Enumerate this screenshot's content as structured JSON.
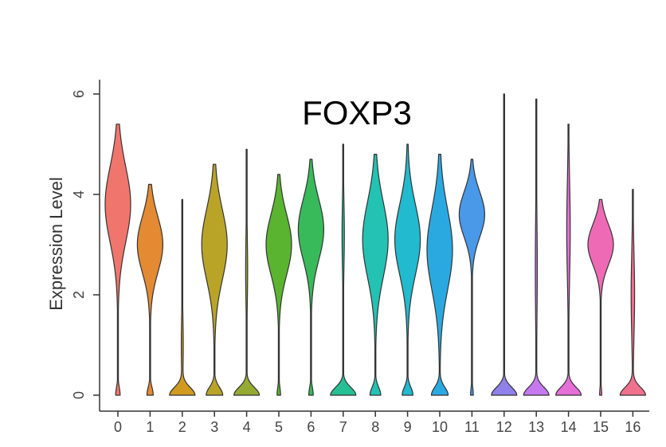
{
  "chart_data": {
    "type": "violin",
    "title": "FOXP3",
    "xlabel": "",
    "ylabel": "Expression Level",
    "ylim": [
      0,
      6.3
    ],
    "yticks": [
      0,
      2,
      4,
      6
    ],
    "ytick_labels": [
      "0",
      "2",
      "4",
      "6"
    ],
    "grid": false,
    "legend": "none",
    "categories": [
      "0",
      "1",
      "2",
      "3",
      "4",
      "5",
      "6",
      "7",
      "8",
      "9",
      "10",
      "11",
      "12",
      "13",
      "14",
      "15",
      "16"
    ],
    "colors": [
      "#F0766D",
      "#E38A33",
      "#D09A1F",
      "#B9A428",
      "#95AA33",
      "#5AB42F",
      "#38BA5A",
      "#26BE93",
      "#23C2B3",
      "#21BACE",
      "#2AA9E0",
      "#4A98E8",
      "#8F80EA",
      "#C479EE",
      "#E46FD6",
      "#EF6AB5",
      "#F0718E"
    ],
    "violins": [
      {
        "max": 5.4,
        "center": 3.8,
        "nonzero_fraction": 0.85,
        "spread": 0.75
      },
      {
        "max": 4.2,
        "center": 3.0,
        "nonzero_fraction": 0.8,
        "spread": 0.55
      },
      {
        "max": 3.9,
        "center": 1.0,
        "nonzero_fraction": 0.05,
        "spread": 0.5
      },
      {
        "max": 4.6,
        "center": 3.0,
        "nonzero_fraction": 0.6,
        "spread": 0.7
      },
      {
        "max": 4.9,
        "center": 2.5,
        "nonzero_fraction": 0.05,
        "spread": 0.6
      },
      {
        "max": 4.4,
        "center": 3.0,
        "nonzero_fraction": 0.88,
        "spread": 0.6
      },
      {
        "max": 4.7,
        "center": 3.3,
        "nonzero_fraction": 0.85,
        "spread": 0.6
      },
      {
        "max": 5.0,
        "center": 3.2,
        "nonzero_fraction": 0.06,
        "spread": 0.6
      },
      {
        "max": 4.8,
        "center": 3.1,
        "nonzero_fraction": 0.7,
        "spread": 0.75
      },
      {
        "max": 5.0,
        "center": 3.1,
        "nonzero_fraction": 0.7,
        "spread": 0.7
      },
      {
        "max": 4.8,
        "center": 2.9,
        "nonzero_fraction": 0.6,
        "spread": 0.8
      },
      {
        "max": 4.7,
        "center": 3.6,
        "nonzero_fraction": 0.9,
        "spread": 0.45
      },
      {
        "max": 6.0,
        "center": 3.0,
        "nonzero_fraction": 0.0,
        "spread": 0.6
      },
      {
        "max": 5.9,
        "center": 2.5,
        "nonzero_fraction": 0.05,
        "spread": 0.9
      },
      {
        "max": 5.4,
        "center": 3.3,
        "nonzero_fraction": 0.1,
        "spread": 0.9
      },
      {
        "max": 3.9,
        "center": 3.0,
        "nonzero_fraction": 0.92,
        "spread": 0.4
      },
      {
        "max": 4.1,
        "center": 2.0,
        "nonzero_fraction": 0.1,
        "spread": 0.8
      }
    ]
  }
}
